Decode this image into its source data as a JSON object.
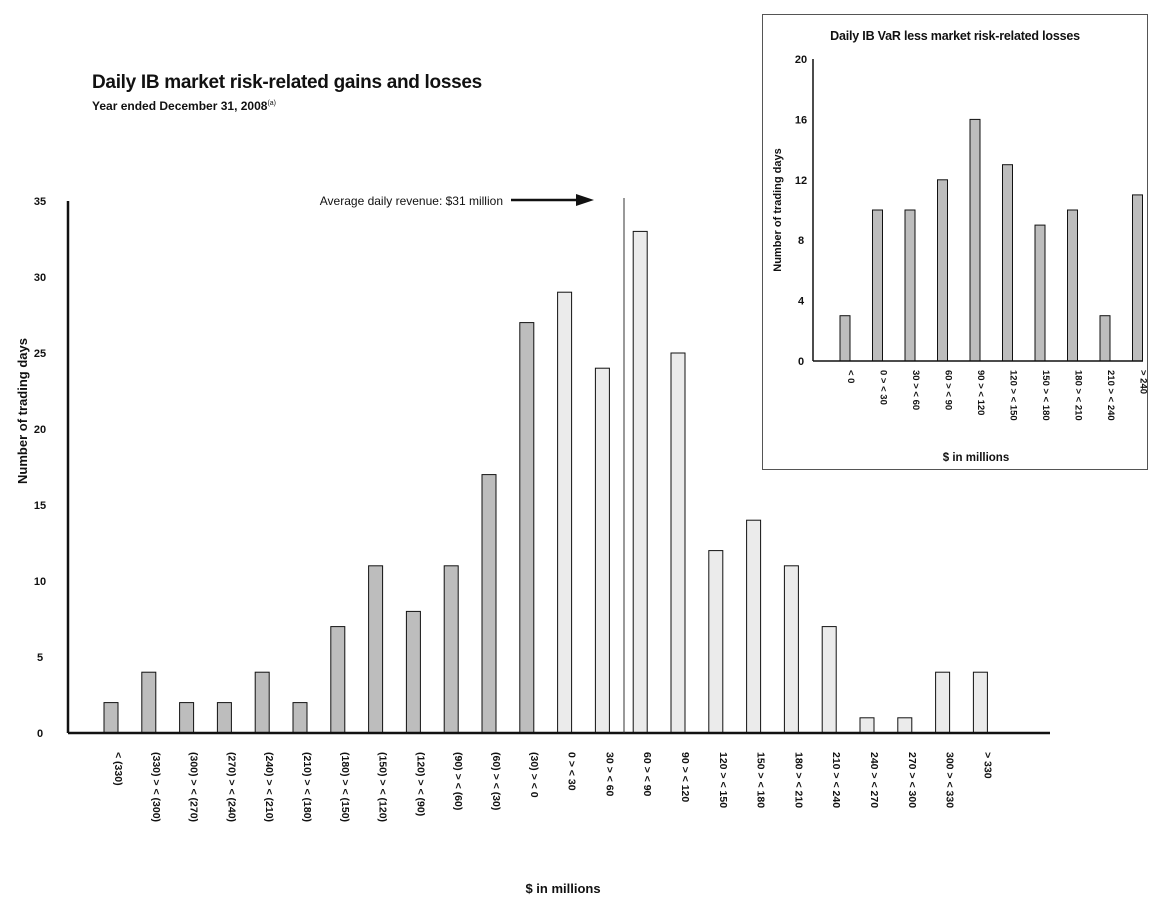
{
  "colors": {
    "loss_bar": "#bdbdbd",
    "gain_bar": "#ebebeb",
    "bar_stroke": "#111111",
    "axis": "#111111"
  },
  "chart_data": [
    {
      "type": "bar",
      "title": "Daily IB market risk-related gains and losses",
      "subtitle": "Year ended December 31, 2008",
      "subtitle_footnote": "(a)",
      "xlabel": "$ in millions",
      "ylabel": "Number of trading days",
      "ylim": [
        0,
        35
      ],
      "yticks": [
        "0",
        "5",
        "10",
        "15",
        "20",
        "25",
        "30",
        "35"
      ],
      "annotation": "Average daily revenue: $31 million",
      "categories": [
        "< (330)",
        "(330) > < (300)",
        "(300) > < (270)",
        "(270) > < (240)",
        "(240) > < (210)",
        "(210) > < (180)",
        "(180) > < (150)",
        "(150) > < (120)",
        "(120) > < (90)",
        "(90) > < (60)",
        "(60) > < (30)",
        "(30) > < 0",
        "0 > < 30",
        "30 > < 60",
        "60 > < 90",
        "90 > < 120",
        "120 > < 150",
        "150 > < 180",
        "180 > < 210",
        "210 > < 240",
        "240 > < 270",
        "270 > < 300",
        "300 > < 330",
        "> 330"
      ],
      "values": [
        2,
        4,
        2,
        2,
        4,
        2,
        7,
        11,
        8,
        11,
        17,
        27,
        29,
        24,
        33,
        25,
        12,
        14,
        11,
        7,
        1,
        1,
        4,
        4
      ],
      "grid": false,
      "legend": "none"
    },
    {
      "type": "bar",
      "title": "Daily IB VaR less market risk-related losses",
      "xlabel": "$ in millions",
      "ylabel": "Number of trading days",
      "ylim": [
        0,
        20
      ],
      "yticks": [
        "0",
        "4",
        "8",
        "12",
        "16",
        "20"
      ],
      "categories": [
        "< 0",
        "0 > < 30",
        "30 > < 60",
        "60 > < 90",
        "90 > < 120",
        "120 > < 150",
        "150 > < 180",
        "180 > < 210",
        "210 > < 240",
        "> 240"
      ],
      "values": [
        3,
        10,
        10,
        12,
        16,
        13,
        9,
        10,
        3,
        11
      ],
      "grid": false,
      "legend": "none"
    }
  ]
}
